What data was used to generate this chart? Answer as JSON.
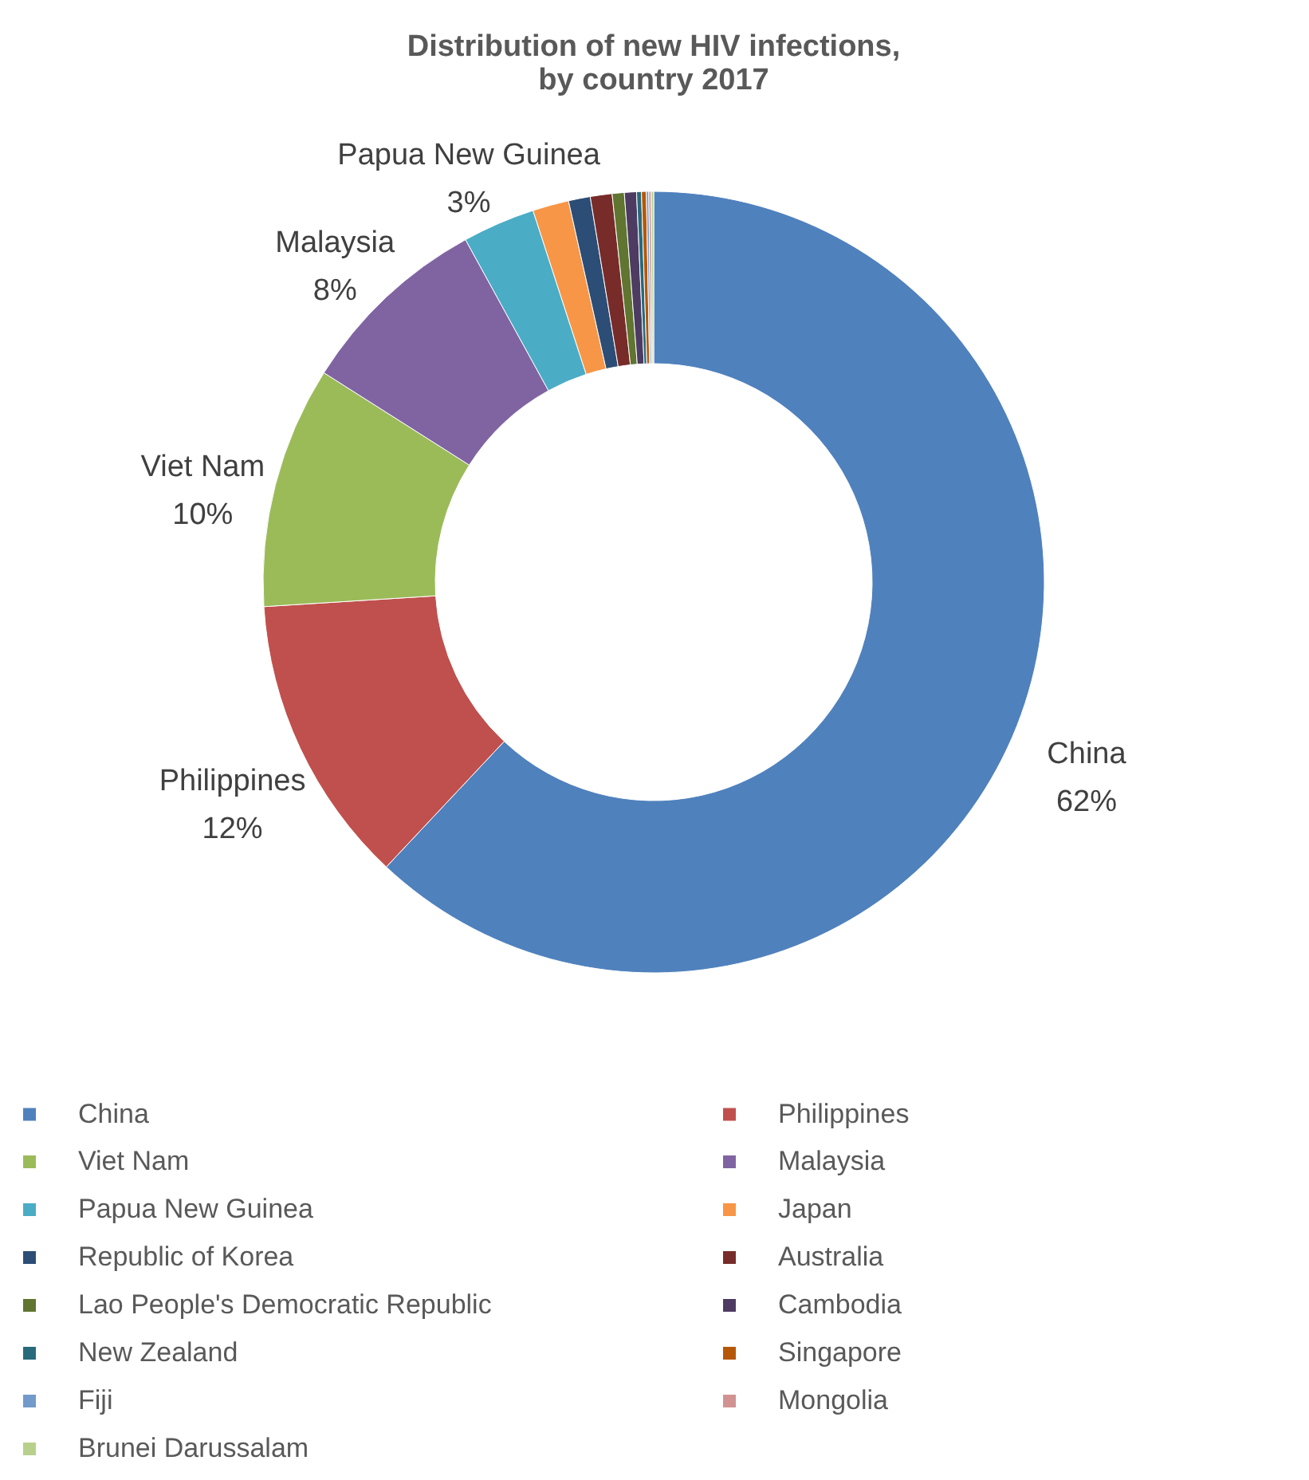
{
  "chart_data": {
    "type": "donut",
    "title": "Distribution of new HIV infections,\nby country 2017",
    "categories": [
      "China",
      "Philippines",
      "Viet Nam",
      "Malaysia",
      "Papua New Guinea",
      "Japan",
      "Republic of Korea",
      "Australia",
      "Lao People's Democratic Republic",
      "Cambodia",
      "New Zealand",
      "Singapore",
      "Fiji",
      "Mongolia",
      "Brunei Darussalam"
    ],
    "values": [
      62,
      12,
      10,
      8,
      3,
      1.5,
      0.9,
      0.9,
      0.5,
      0.5,
      0.2,
      0.2,
      0.1,
      0.1,
      0.1
    ],
    "value_labels": [
      "62%",
      "12%",
      "10%",
      "8%",
      "3%",
      null,
      null,
      null,
      null,
      null,
      null,
      null,
      null,
      null,
      null
    ],
    "colors": [
      "#4f81bd",
      "#c0504d",
      "#9bbb59",
      "#8064a2",
      "#4bacc6",
      "#f79646",
      "#2c4d75",
      "#772c2a",
      "#5f7530",
      "#4d3b62",
      "#276a7c",
      "#b65708",
      "#729aca",
      "#d19392",
      "#b7d18c"
    ],
    "legend": "bottom"
  }
}
